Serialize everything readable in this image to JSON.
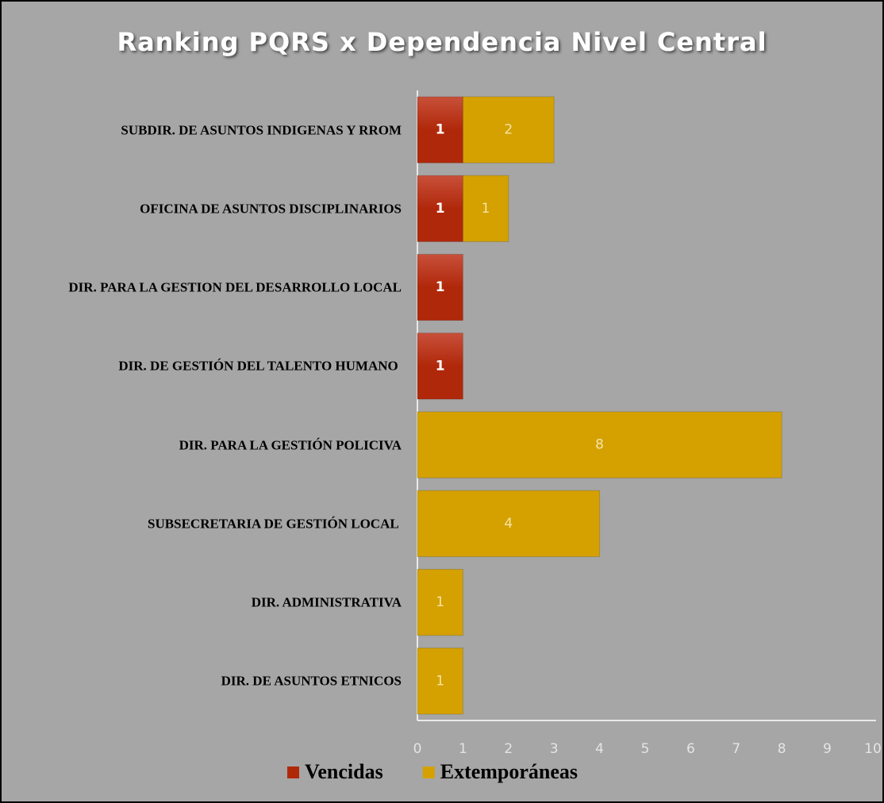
{
  "chart_data": {
    "type": "stacked_barh",
    "title": "Ranking PQRS x Dependencia Nivel Central",
    "categories": [
      "SUBDIR. DE ASUNTOS INDIGENAS Y RROM",
      "OFICINA DE ASUNTOS DISCIPLINARIOS",
      "DIR. PARA LA GESTION DEL DESARROLLO LOCAL",
      "DIR. DE GESTIÓN DEL TALENTO HUMANO ",
      "DIR. PARA LA GESTIÓN POLICIVA",
      "SUBSECRETARIA DE GESTIÓN LOCAL ",
      "DIR. ADMINISTRATIVA",
      "DIR. DE ASUNTOS ETNICOS"
    ],
    "series": [
      {
        "name": "Vencidas",
        "color": "#b0280a",
        "values": [
          1,
          1,
          1,
          1,
          null,
          null,
          null,
          null
        ]
      },
      {
        "name": "Extemporáneas",
        "color": "#d4a100",
        "values": [
          2,
          1,
          null,
          null,
          8,
          4,
          1,
          1
        ]
      }
    ],
    "xlim": [
      0,
      10
    ],
    "xticks": [
      0,
      1,
      2,
      3,
      4,
      5,
      6,
      7,
      8,
      9,
      10
    ],
    "legend": "bottom",
    "grid": false
  }
}
